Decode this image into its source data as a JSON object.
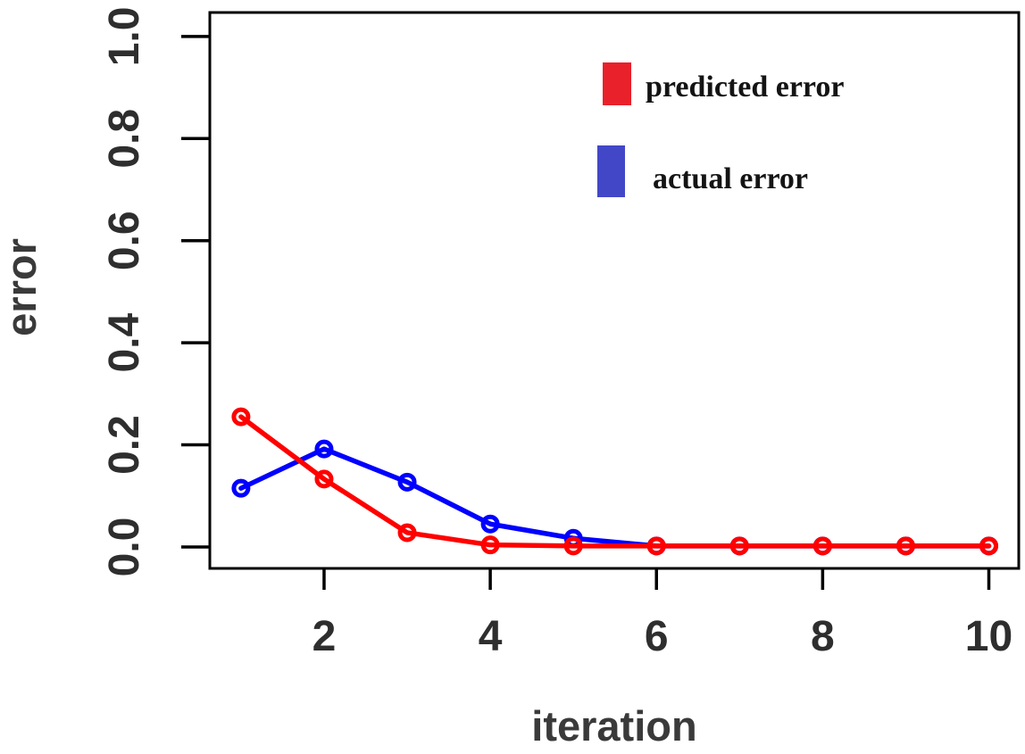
{
  "chart_data": {
    "type": "line",
    "title": "",
    "xlabel": "iteration",
    "ylabel": "error",
    "x": [
      1,
      2,
      3,
      4,
      5,
      6,
      7,
      8,
      9,
      10
    ],
    "series": [
      {
        "name": "predicted error",
        "color": "#ff0000",
        "legend_color": "#e8212b",
        "marker": "open-circle",
        "values": [
          0.255,
          0.133,
          0.028,
          0.004,
          0.002,
          0.002,
          0.002,
          0.002,
          0.002,
          0.002
        ]
      },
      {
        "name": "actual error",
        "color": "#0000ff",
        "legend_color": "#4247c8",
        "marker": "open-circle",
        "values": [
          0.115,
          0.192,
          0.127,
          0.045,
          0.017,
          0.002,
          0.002,
          0.002,
          0.002,
          0.002
        ]
      }
    ],
    "xlim": [
      0.625,
      10.36
    ],
    "ylim": [
      -0.042,
      1.047
    ],
    "x_ticks": [
      "2",
      "4",
      "6",
      "8",
      "10"
    ],
    "x_tick_values": [
      2,
      4,
      6,
      8,
      10
    ],
    "y_ticks": [
      "0.0",
      "0.2",
      "0.4",
      "0.6",
      "0.8",
      "1.0"
    ],
    "y_tick_values": [
      0.0,
      0.2,
      0.4,
      0.6,
      0.8,
      1.0
    ],
    "grid": false,
    "legend_position": "top-right",
    "axis_color": "#000000",
    "background": "#ffffff"
  }
}
